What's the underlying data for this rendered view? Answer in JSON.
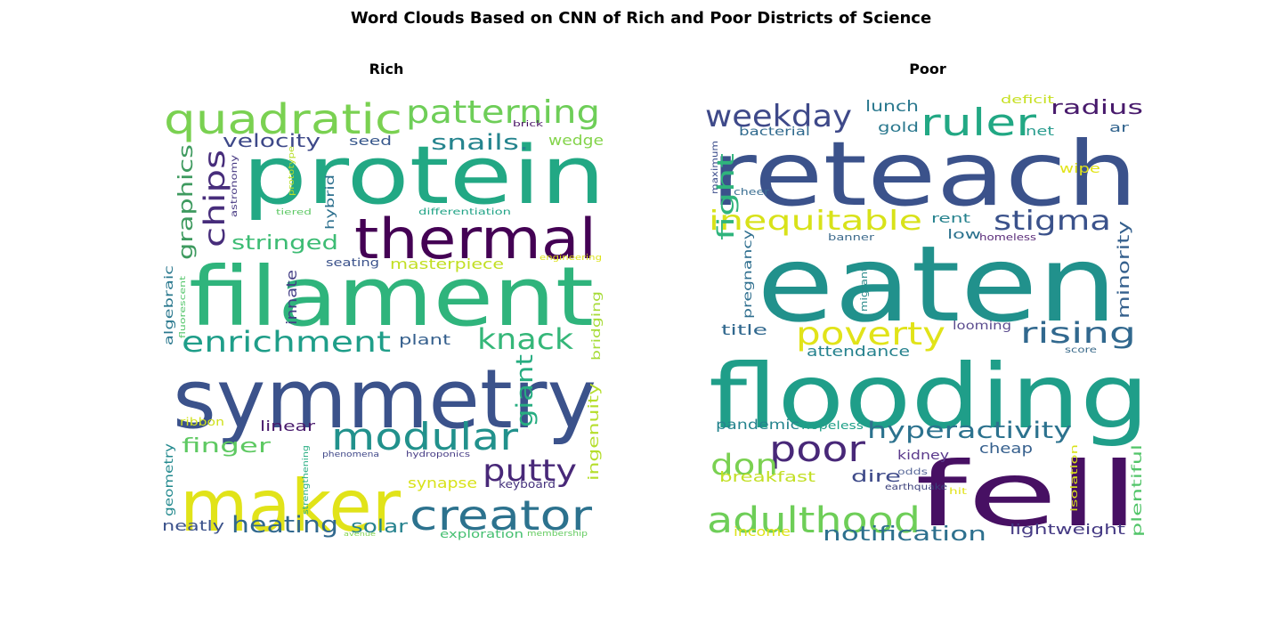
{
  "title": "Word Clouds Based on CNN of Rich and Poor Districts of Science",
  "chart_data": [
    {
      "type": "wordcloud",
      "title": "Rich",
      "words": [
        {
          "text": "protein",
          "color": "#22a884",
          "rank": 1
        },
        {
          "text": "filament",
          "color": "#2fb47c",
          "rank": 1
        },
        {
          "text": "symmetry",
          "color": "#3b528b",
          "rank": 1
        },
        {
          "text": "maker",
          "color": "#e1e319",
          "rank": 1
        },
        {
          "text": "thermal",
          "color": "#440154",
          "rank": 2
        },
        {
          "text": "quadratic",
          "color": "#7ad151",
          "rank": 2
        },
        {
          "text": "creator",
          "color": "#2c728e",
          "rank": 2
        },
        {
          "text": "modular",
          "color": "#21918c",
          "rank": 2
        },
        {
          "text": "patterning",
          "color": "#6ece58",
          "rank": 2
        },
        {
          "text": "enrichment",
          "color": "#1f9e89",
          "rank": 3
        },
        {
          "text": "knack",
          "color": "#35b779",
          "rank": 3
        },
        {
          "text": "putty",
          "color": "#482878",
          "rank": 3
        },
        {
          "text": "chips",
          "color": "#472d7b",
          "rank": 3
        },
        {
          "text": "heating",
          "color": "#31688e",
          "rank": 4
        },
        {
          "text": "giant",
          "color": "#27ad81",
          "rank": 4
        },
        {
          "text": "graphics",
          "color": "#3e9a5f",
          "rank": 4
        },
        {
          "text": "snails.",
          "color": "#25848e",
          "rank": 4
        },
        {
          "text": "stringed",
          "color": "#3dbc74",
          "rank": 4
        },
        {
          "text": "finger",
          "color": "#5ec962",
          "rank": 4
        },
        {
          "text": "velocity",
          "color": "#3e4989",
          "rank": 5
        },
        {
          "text": "solar",
          "color": "#26828e",
          "rank": 5
        },
        {
          "text": "masterpiece",
          "color": "#c2df23",
          "rank": 5
        },
        {
          "text": "synapse",
          "color": "#d8e219",
          "rank": 5
        },
        {
          "text": "wedge",
          "color": "#84d44b",
          "rank": 5
        },
        {
          "text": "ingenuity",
          "color": "#b5de2b",
          "rank": 5
        },
        {
          "text": "innate",
          "color": "#433e85",
          "rank": 5
        },
        {
          "text": "linear",
          "color": "#481a6c",
          "rank": 5
        },
        {
          "text": "plant",
          "color": "#355f8d",
          "rank": 5
        },
        {
          "text": "neatly",
          "color": "#3b528b",
          "rank": 5
        },
        {
          "text": "seed",
          "color": "#38588c",
          "rank": 6
        },
        {
          "text": "algebraic",
          "color": "#2a788e",
          "rank": 6
        },
        {
          "text": "bridging",
          "color": "#a5db36",
          "rank": 6
        },
        {
          "text": "hybrid",
          "color": "#2d708e",
          "rank": 6
        },
        {
          "text": "geometry",
          "color": "#23898e",
          "rank": 6
        },
        {
          "text": "keyboard",
          "color": "#46337e",
          "rank": 6
        },
        {
          "text": "seating",
          "color": "#3b528b",
          "rank": 6
        },
        {
          "text": "exploration",
          "color": "#44bf70",
          "rank": 6
        },
        {
          "text": "ribbon",
          "color": "#d0e11c",
          "rank": 6
        },
        {
          "text": "astronomy",
          "color": "#453781",
          "rank": 7
        },
        {
          "text": "fluorescent",
          "color": "#52c569",
          "rank": 7
        },
        {
          "text": "differentiation",
          "color": "#20a386",
          "rank": 7
        },
        {
          "text": "phenomena",
          "color": "#3f4788",
          "rank": 7
        },
        {
          "text": "hydroponics",
          "color": "#443983",
          "rank": 7
        },
        {
          "text": "strengthening",
          "color": "#26ad81",
          "rank": 7
        },
        {
          "text": "membership",
          "color": "#63cb5f",
          "rank": 7
        },
        {
          "text": "engineering",
          "color": "#dde318",
          "rank": 7
        },
        {
          "text": "prototype",
          "color": "#b8de29",
          "rank": 7
        },
        {
          "text": "tiered",
          "color": "#5cc863",
          "rank": 7
        },
        {
          "text": "brick",
          "color": "#471063",
          "rank": 7
        },
        {
          "text": "avenue",
          "color": "#7fd34e",
          "rank": 7
        }
      ]
    },
    {
      "type": "wordcloud",
      "title": "Poor",
      "words": [
        {
          "text": "reteach",
          "color": "#3b528b",
          "rank": 1
        },
        {
          "text": "eaten",
          "color": "#21918c",
          "rank": 1
        },
        {
          "text": "flooding",
          "color": "#1f9e89",
          "rank": 1
        },
        {
          "text": "fell",
          "color": "#471063",
          "rank": 1
        },
        {
          "text": "adulthood",
          "color": "#6ece58",
          "rank": 2
        },
        {
          "text": "ruler",
          "color": "#22a884",
          "rank": 2
        },
        {
          "text": "poverty",
          "color": "#e1e319",
          "rank": 2
        },
        {
          "text": "weekday",
          "color": "#3e4989",
          "rank": 2
        },
        {
          "text": "poor",
          "color": "#482878",
          "rank": 2
        },
        {
          "text": "inequitable",
          "color": "#d8e219",
          "rank": 3
        },
        {
          "text": "hyperactivity",
          "color": "#2c728e",
          "rank": 3
        },
        {
          "text": "rising",
          "color": "#31688e",
          "rank": 3
        },
        {
          "text": "stigma",
          "color": "#3b528b",
          "rank": 3
        },
        {
          "text": "don",
          "color": "#7ad151",
          "rank": 3
        },
        {
          "text": "fight",
          "color": "#2fb47c",
          "rank": 3
        },
        {
          "text": "notification",
          "color": "#2d708e",
          "rank": 4
        },
        {
          "text": "radius",
          "color": "#481a6c",
          "rank": 4
        },
        {
          "text": "minority",
          "color": "#35608d",
          "rank": 4
        },
        {
          "text": "attendance",
          "color": "#26828e",
          "rank": 5
        },
        {
          "text": "breakfast",
          "color": "#c2df23",
          "rank": 5
        },
        {
          "text": "lightweight",
          "color": "#443983",
          "rank": 5
        },
        {
          "text": "dire",
          "color": "#3e4a89",
          "rank": 5
        },
        {
          "text": "pandemic",
          "color": "#25848e",
          "rank": 5
        },
        {
          "text": "lunch",
          "color": "#2a788e",
          "rank": 5
        },
        {
          "text": "title",
          "color": "#31688e",
          "rank": 5
        },
        {
          "text": "plentiful",
          "color": "#52c569",
          "rank": 5
        },
        {
          "text": "cheap",
          "color": "#355f8d",
          "rank": 5
        },
        {
          "text": "kidney",
          "color": "#5b3a8c",
          "rank": 5
        },
        {
          "text": "gold",
          "color": "#2a788e",
          "rank": 5
        },
        {
          "text": "rent",
          "color": "#26828e",
          "rank": 5
        },
        {
          "text": "low",
          "color": "#2c728e",
          "rank": 5
        },
        {
          "text": "income",
          "color": "#dde318",
          "rank": 5
        },
        {
          "text": "looming",
          "color": "#5a4b8e",
          "rank": 6
        },
        {
          "text": "pregnancy",
          "color": "#2e6e8e",
          "rank": 6
        },
        {
          "text": "bacterial",
          "color": "#306a8e",
          "rank": 6
        },
        {
          "text": "net",
          "color": "#2a9d8f",
          "rank": 6
        },
        {
          "text": "ar",
          "color": "#32648e",
          "rank": 6
        },
        {
          "text": "wipe",
          "color": "#e2e418",
          "rank": 6
        },
        {
          "text": "hopeless",
          "color": "#1fa088",
          "rank": 6
        },
        {
          "text": "homeless",
          "color": "#5b2d7a",
          "rank": 7
        },
        {
          "text": "deficit",
          "color": "#c6e021",
          "rank": 7
        },
        {
          "text": "banner",
          "color": "#3e6b8c",
          "rank": 7
        },
        {
          "text": "migrant",
          "color": "#2a8a8a",
          "rank": 7
        },
        {
          "text": "maximum",
          "color": "#3a4c8a",
          "rank": 7
        },
        {
          "text": "cheer",
          "color": "#3b6f92",
          "rank": 7
        },
        {
          "text": "odds",
          "color": "#5a6a9a",
          "rank": 7
        },
        {
          "text": "earthquake",
          "color": "#3a3f7a",
          "rank": 7
        },
        {
          "text": "hit",
          "color": "#e0e218",
          "rank": 7
        },
        {
          "text": "isolation",
          "color": "#d8e219",
          "rank": 7
        },
        {
          "text": "score",
          "color": "#3a6a8a",
          "rank": 7
        }
      ]
    }
  ]
}
